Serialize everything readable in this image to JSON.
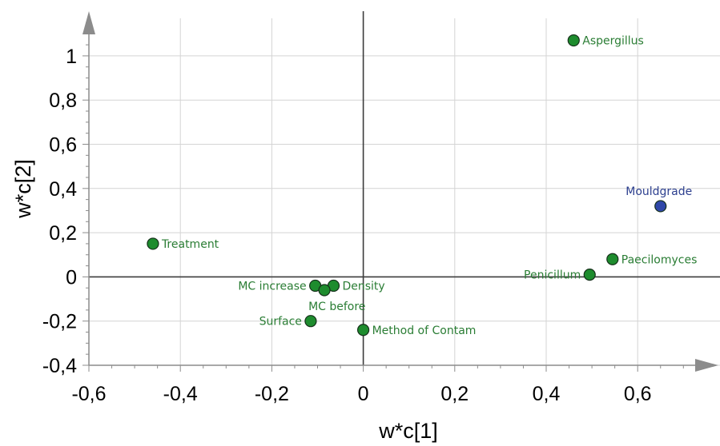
{
  "chart_data": {
    "type": "scatter",
    "title": "",
    "xlabel": "w*c[1]",
    "ylabel": "w*c[2]",
    "xlim": [
      -0.6,
      0.78
    ],
    "ylim": [
      -0.4,
      1.17
    ],
    "xticks": [
      -0.6,
      -0.4,
      -0.2,
      0,
      0.2,
      0.4,
      0.6
    ],
    "xtick_labels": [
      "-0,6",
      "-0,4",
      "-0,2",
      "0",
      "0,2",
      "0,4",
      "0,6"
    ],
    "yticks": [
      -0.4,
      -0.2,
      0,
      0.2,
      0.4,
      0.6,
      0.8,
      1
    ],
    "ytick_labels": [
      "-0,4",
      "-0,2",
      "0",
      "0,2",
      "0,4",
      "0,6",
      "0,8",
      "1"
    ],
    "grid": true,
    "colors": {
      "x_variables": "#1e8c2e",
      "y_variables": "#2f47a8",
      "label_green": "#2a7d34",
      "label_blue": "#2c3f8f"
    },
    "points": [
      {
        "label": "Aspergillus",
        "x": 0.46,
        "y": 1.07,
        "group": "x",
        "label_pos": "right"
      },
      {
        "label": "Mouldgrade",
        "x": 0.65,
        "y": 0.32,
        "group": "y",
        "label_pos": "above"
      },
      {
        "label": "Treatment",
        "x": -0.46,
        "y": 0.15,
        "group": "x",
        "label_pos": "right"
      },
      {
        "label": "Paecilomyces",
        "x": 0.545,
        "y": 0.08,
        "group": "x",
        "label_pos": "right"
      },
      {
        "label": "Penicillum",
        "x": 0.495,
        "y": 0.01,
        "group": "x",
        "label_pos": "left"
      },
      {
        "label": "MC increase",
        "x": -0.105,
        "y": -0.04,
        "group": "x",
        "label_pos": "left"
      },
      {
        "label": "Density",
        "x": -0.065,
        "y": -0.04,
        "group": "x",
        "label_pos": "right"
      },
      {
        "label": "MC before",
        "x": -0.085,
        "y": -0.06,
        "group": "x",
        "label_pos": "below-right"
      },
      {
        "label": "Surface",
        "x": -0.115,
        "y": -0.2,
        "group": "x",
        "label_pos": "left"
      },
      {
        "label": "Method of Contam",
        "x": 0.0,
        "y": -0.24,
        "group": "x",
        "label_pos": "right"
      }
    ]
  }
}
